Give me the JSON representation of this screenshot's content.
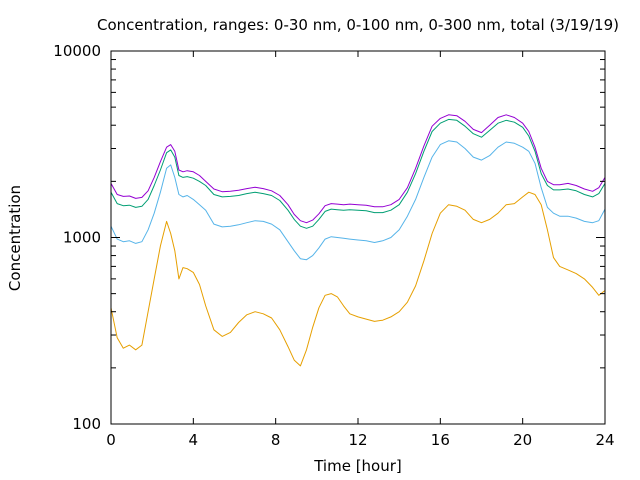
{
  "chart_data": {
    "type": "line",
    "title": "Concentration, ranges: 0-30 nm, 0-100 nm, 0-300 nm, total (3/19/19)",
    "xlabel": "Time [hour]",
    "ylabel": "Concentration",
    "xlim": [
      0,
      24
    ],
    "ylim": [
      100,
      10000
    ],
    "yscale": "log",
    "xticks": [
      "0",
      "4",
      "8",
      "12",
      "16",
      "20",
      "24"
    ],
    "yticks": [
      "100",
      "1000",
      "10000"
    ],
    "grid": false,
    "legend": "none",
    "series": [
      {
        "color": "#e69f00",
        "x": [
          0,
          0.3,
          0.6,
          0.9,
          1.2,
          1.5,
          1.8,
          2.1,
          2.4,
          2.7,
          2.9,
          3.1,
          3.3,
          3.5,
          3.7,
          4.0,
          4.3,
          4.6,
          5.0,
          5.4,
          5.8,
          6.2,
          6.6,
          7.0,
          7.4,
          7.8,
          8.2,
          8.6,
          8.9,
          9.2,
          9.5,
          9.8,
          10.1,
          10.4,
          10.7,
          11.0,
          11.3,
          11.6,
          12.0,
          12.4,
          12.8,
          13.2,
          13.6,
          14.0,
          14.4,
          14.8,
          15.2,
          15.6,
          16.0,
          16.4,
          16.8,
          17.2,
          17.6,
          18.0,
          18.4,
          18.8,
          19.2,
          19.6,
          20.0,
          20.3,
          20.6,
          20.9,
          21.2,
          21.5,
          21.8,
          22.2,
          22.6,
          23.0,
          23.4,
          23.7,
          24.0
        ],
        "y": [
          420,
          290,
          255,
          265,
          250,
          265,
          400,
          600,
          900,
          1220,
          1050,
          850,
          600,
          690,
          680,
          650,
          560,
          430,
          320,
          295,
          310,
          350,
          385,
          400,
          390,
          370,
          320,
          260,
          220,
          205,
          250,
          330,
          420,
          490,
          500,
          480,
          430,
          390,
          375,
          365,
          355,
          360,
          375,
          400,
          450,
          550,
          750,
          1050,
          1350,
          1500,
          1470,
          1400,
          1250,
          1200,
          1250,
          1350,
          1500,
          1520,
          1650,
          1750,
          1700,
          1500,
          1100,
          780,
          700,
          670,
          640,
          600,
          540,
          490,
          520
        ]
      },
      {
        "color": "#56b4e9",
        "x": [
          0,
          0.3,
          0.6,
          0.9,
          1.2,
          1.5,
          1.8,
          2.1,
          2.4,
          2.7,
          2.9,
          3.1,
          3.3,
          3.5,
          3.7,
          4.0,
          4.3,
          4.6,
          5.0,
          5.4,
          5.8,
          6.2,
          6.6,
          7.0,
          7.4,
          7.8,
          8.2,
          8.6,
          8.9,
          9.2,
          9.5,
          9.8,
          10.1,
          10.4,
          10.7,
          11.0,
          11.3,
          11.6,
          12.0,
          12.4,
          12.8,
          13.2,
          13.6,
          14.0,
          14.4,
          14.8,
          15.2,
          15.6,
          16.0,
          16.4,
          16.8,
          17.2,
          17.6,
          18.0,
          18.4,
          18.8,
          19.2,
          19.6,
          20.0,
          20.3,
          20.6,
          20.9,
          21.2,
          21.5,
          21.8,
          22.2,
          22.6,
          23.0,
          23.4,
          23.7,
          24.0
        ],
        "y": [
          1150,
          980,
          950,
          960,
          930,
          950,
          1100,
          1350,
          1750,
          2350,
          2450,
          2100,
          1700,
          1650,
          1680,
          1600,
          1500,
          1400,
          1180,
          1140,
          1150,
          1170,
          1200,
          1230,
          1220,
          1180,
          1100,
          950,
          850,
          770,
          760,
          800,
          880,
          980,
          1010,
          1000,
          990,
          980,
          970,
          960,
          940,
          960,
          1000,
          1100,
          1300,
          1600,
          2100,
          2700,
          3150,
          3300,
          3250,
          3000,
          2700,
          2600,
          2750,
          3050,
          3250,
          3200,
          3050,
          2900,
          2500,
          1850,
          1450,
          1350,
          1300,
          1300,
          1270,
          1220,
          1200,
          1230,
          1420
        ]
      },
      {
        "color": "#009e73",
        "x": [
          0,
          0.3,
          0.6,
          0.9,
          1.2,
          1.5,
          1.8,
          2.1,
          2.4,
          2.7,
          2.9,
          3.1,
          3.3,
          3.5,
          3.7,
          4.0,
          4.3,
          4.6,
          5.0,
          5.4,
          5.8,
          6.2,
          6.6,
          7.0,
          7.4,
          7.8,
          8.2,
          8.6,
          8.9,
          9.2,
          9.5,
          9.8,
          10.1,
          10.4,
          10.7,
          11.0,
          11.3,
          11.6,
          12.0,
          12.4,
          12.8,
          13.2,
          13.6,
          14.0,
          14.4,
          14.8,
          15.2,
          15.6,
          16.0,
          16.4,
          16.8,
          17.2,
          17.6,
          18.0,
          18.4,
          18.8,
          19.2,
          19.6,
          20.0,
          20.3,
          20.6,
          20.9,
          21.2,
          21.5,
          21.8,
          22.2,
          22.6,
          23.0,
          23.4,
          23.7,
          24.0
        ],
        "y": [
          1750,
          1520,
          1480,
          1490,
          1450,
          1470,
          1600,
          1900,
          2300,
          2850,
          2950,
          2700,
          2150,
          2100,
          2120,
          2080,
          2000,
          1900,
          1700,
          1650,
          1660,
          1680,
          1720,
          1750,
          1720,
          1680,
          1580,
          1400,
          1250,
          1150,
          1120,
          1150,
          1250,
          1380,
          1420,
          1410,
          1400,
          1410,
          1400,
          1390,
          1360,
          1360,
          1400,
          1500,
          1750,
          2200,
          2900,
          3700,
          4100,
          4300,
          4250,
          3950,
          3600,
          3450,
          3750,
          4100,
          4250,
          4150,
          3900,
          3500,
          2900,
          2200,
          1900,
          1800,
          1800,
          1820,
          1780,
          1700,
          1650,
          1720,
          1950
        ]
      },
      {
        "color": "#9400d3",
        "x": [
          0,
          0.3,
          0.6,
          0.9,
          1.2,
          1.5,
          1.8,
          2.1,
          2.4,
          2.7,
          2.9,
          3.1,
          3.3,
          3.5,
          3.7,
          4.0,
          4.3,
          4.6,
          5.0,
          5.4,
          5.8,
          6.2,
          6.6,
          7.0,
          7.4,
          7.8,
          8.2,
          8.6,
          8.9,
          9.2,
          9.5,
          9.8,
          10.1,
          10.4,
          10.7,
          11.0,
          11.3,
          11.6,
          12.0,
          12.4,
          12.8,
          13.2,
          13.6,
          14.0,
          14.4,
          14.8,
          15.2,
          15.6,
          16.0,
          16.4,
          16.8,
          17.2,
          17.6,
          18.0,
          18.4,
          18.8,
          19.2,
          19.6,
          20.0,
          20.3,
          20.6,
          20.9,
          21.2,
          21.5,
          21.8,
          22.2,
          22.6,
          23.0,
          23.4,
          23.7,
          24.0
        ],
        "y": [
          1950,
          1700,
          1660,
          1670,
          1620,
          1640,
          1780,
          2100,
          2550,
          3050,
          3150,
          2900,
          2300,
          2250,
          2280,
          2250,
          2150,
          2000,
          1820,
          1760,
          1770,
          1790,
          1830,
          1860,
          1830,
          1780,
          1680,
          1500,
          1330,
          1230,
          1200,
          1240,
          1340,
          1480,
          1520,
          1510,
          1500,
          1510,
          1500,
          1490,
          1460,
          1460,
          1500,
          1600,
          1850,
          2350,
          3100,
          3950,
          4350,
          4550,
          4500,
          4200,
          3800,
          3650,
          4000,
          4400,
          4550,
          4400,
          4100,
          3700,
          3050,
          2350,
          2000,
          1920,
          1920,
          1950,
          1900,
          1820,
          1770,
          1850,
          2100
        ]
      }
    ]
  }
}
